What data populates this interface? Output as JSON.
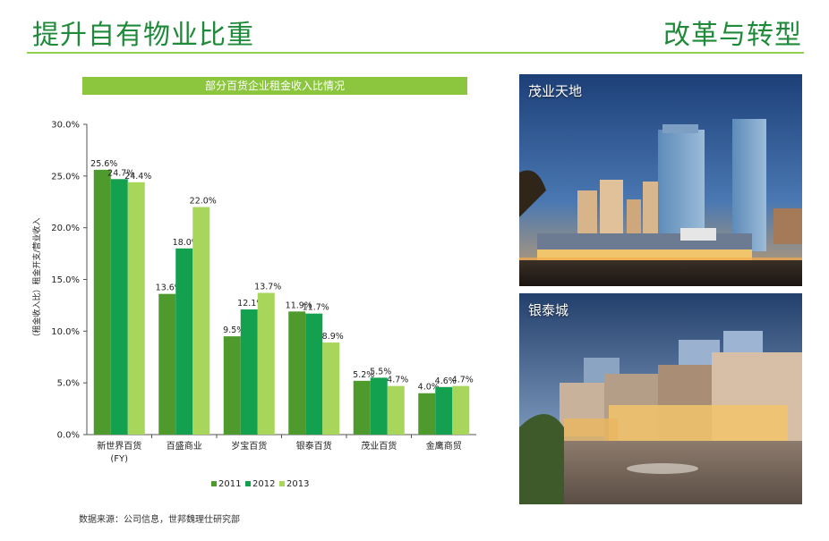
{
  "header": {
    "title_left": "提升自有物业比重",
    "title_right": "改革与转型"
  },
  "chart_banner": "部分百货企业租金收入比情况",
  "colors": {
    "accent": "#1f8b3a",
    "banner": "#8cc63e",
    "series": [
      "#4e9a2c",
      "#13a04f",
      "#a8d65a"
    ]
  },
  "chart_data": {
    "type": "bar",
    "title": "部分百货企业租金收入比情况",
    "ylabel": "（租金收入比）租金开支/营业收入",
    "xlabel": "",
    "ylim": [
      0,
      30
    ],
    "yticks": [
      "0.0%",
      "5.0%",
      "10.0%",
      "15.0%",
      "20.0%",
      "25.0%",
      "30.0%"
    ],
    "categories": [
      [
        "新世界百货",
        "(FY)"
      ],
      [
        "百盛商业"
      ],
      [
        "岁宝百货"
      ],
      [
        "银泰百货"
      ],
      [
        "茂业百货"
      ],
      [
        "金鹰商贸"
      ]
    ],
    "series": [
      {
        "name": "2011",
        "values": [
          25.6,
          13.6,
          9.5,
          11.9,
          5.2,
          4.0
        ],
        "labels": [
          "25.6%",
          "13.6%",
          "9.5%",
          "11.9%",
          "5.2%",
          "4.0%"
        ]
      },
      {
        "name": "2012",
        "values": [
          24.7,
          18.0,
          12.1,
          11.7,
          5.5,
          4.6
        ],
        "labels": [
          "24.7%",
          "18.0%",
          "12.1%",
          "11.7%",
          "5.5%",
          "4.6%"
        ]
      },
      {
        "name": "2013",
        "values": [
          24.4,
          22.0,
          13.7,
          8.9,
          4.7,
          4.7
        ],
        "labels": [
          "24.4%",
          "22.0%",
          "13.7%",
          "8.9%",
          "4.7%",
          "4.7%"
        ]
      }
    ],
    "legend_position": "bottom",
    "grid": false
  },
  "photos": [
    {
      "label": "茂业天地",
      "icon": "building-photo-icon"
    },
    {
      "label": "银泰城",
      "icon": "mall-photo-icon"
    }
  ],
  "source": "数据来源：公司信息，世邦魏理仕研究部"
}
